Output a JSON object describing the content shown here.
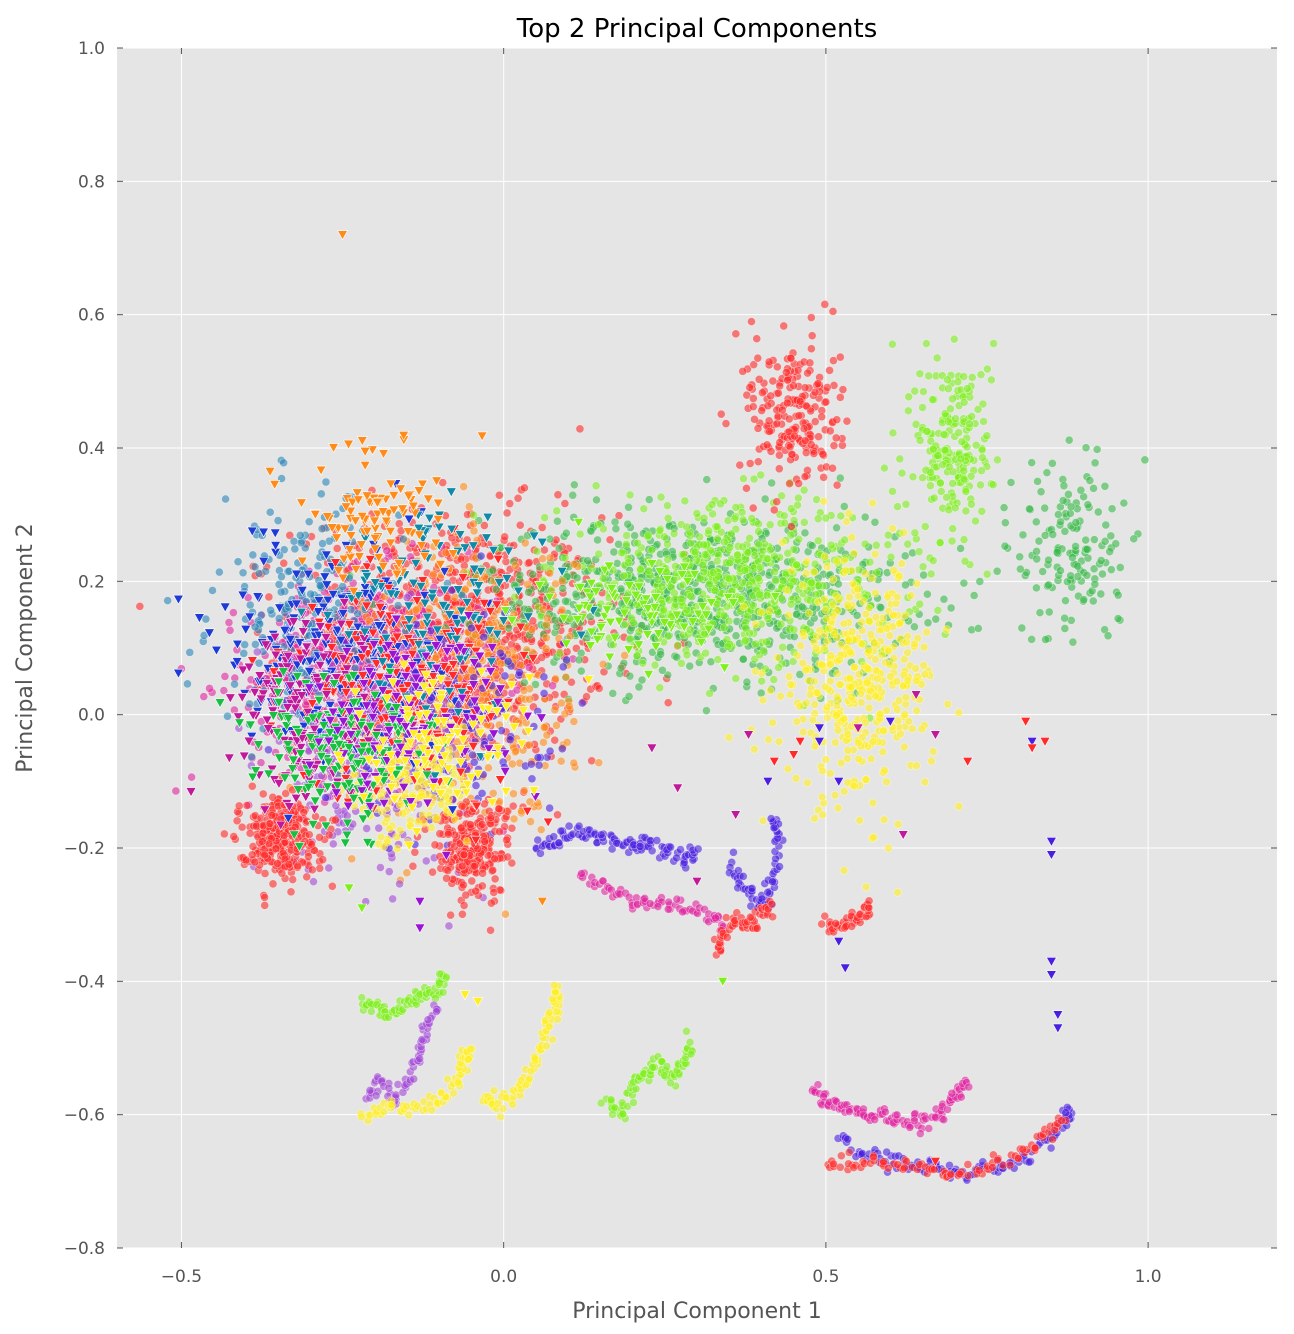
{
  "chart_data": {
    "type": "scatter",
    "title": "Top 2 Principal Components",
    "xlabel": "Principal Component 1",
    "ylabel": "Principal Component 2",
    "xlim": [
      -0.6,
      1.2
    ],
    "ylim": [
      -0.8,
      1.0
    ],
    "x_ticks": [
      -0.5,
      0.0,
      0.5,
      1.0
    ],
    "x_tick_labels": [
      "−0.5",
      "0.0",
      "0.5",
      "1.0"
    ],
    "y_ticks": [
      -0.8,
      -0.6,
      -0.4,
      -0.2,
      0.0,
      0.2,
      0.4,
      0.6,
      0.8,
      1.0
    ],
    "y_tick_labels": [
      "−0.8",
      "−0.6",
      "−0.4",
      "−0.2",
      "0.0",
      "0.2",
      "0.4",
      "0.6",
      "0.8",
      "1.0"
    ],
    "grid": true,
    "background": "#e5e5e5",
    "marker_alpha": 0.6,
    "clusters": [
      {
        "color": "#ff2a2a",
        "marker": "circle",
        "n": 900,
        "cx": -0.08,
        "cy": 0.12,
        "sx": 0.2,
        "sy": 0.15
      },
      {
        "color": "#e0259e",
        "marker": "circle",
        "n": 700,
        "cx": -0.2,
        "cy": 0.05,
        "sx": 0.16,
        "sy": 0.13
      },
      {
        "color": "#38b94a",
        "marker": "circle",
        "n": 800,
        "cx": 0.3,
        "cy": 0.18,
        "sx": 0.28,
        "sy": 0.1
      },
      {
        "color": "#7fef1e",
        "marker": "circle",
        "n": 550,
        "cx": 0.35,
        "cy": 0.2,
        "sx": 0.22,
        "sy": 0.1
      },
      {
        "color": "#ffee22",
        "marker": "circle",
        "n": 420,
        "cx": 0.55,
        "cy": 0.05,
        "sx": 0.1,
        "sy": 0.15
      },
      {
        "color": "#ff8c1a",
        "marker": "circle",
        "n": 420,
        "cx": -0.05,
        "cy": 0.05,
        "sx": 0.13,
        "sy": 0.18
      },
      {
        "color": "#2a86b8",
        "marker": "circle",
        "n": 260,
        "cx": -0.3,
        "cy": 0.15,
        "sx": 0.12,
        "sy": 0.14
      },
      {
        "color": "#a24ad6",
        "marker": "circle",
        "n": 300,
        "cx": -0.2,
        "cy": -0.05,
        "sx": 0.12,
        "sy": 0.15
      },
      {
        "color": "#4a1fe0",
        "marker": "circle",
        "n": 250,
        "cx": -0.1,
        "cy": 0.0,
        "sx": 0.15,
        "sy": 0.12
      },
      {
        "color": "#ff2a2a",
        "marker": "circle",
        "n": 220,
        "cx": 0.45,
        "cy": 0.45,
        "sx": 0.06,
        "sy": 0.1
      },
      {
        "color": "#7fef1e",
        "marker": "circle",
        "n": 200,
        "cx": 0.7,
        "cy": 0.4,
        "sx": 0.05,
        "sy": 0.12
      },
      {
        "color": "#38b94a",
        "marker": "circle",
        "n": 150,
        "cx": 0.88,
        "cy": 0.25,
        "sx": 0.07,
        "sy": 0.12
      },
      {
        "color": "#ff2a2a",
        "marker": "circle",
        "n": 300,
        "cx": -0.35,
        "cy": -0.18,
        "sx": 0.05,
        "sy": 0.05
      },
      {
        "color": "#ff2a2a",
        "marker": "circle",
        "n": 250,
        "cx": -0.05,
        "cy": -0.2,
        "sx": 0.05,
        "sy": 0.06
      },
      {
        "color": "#ffee22",
        "marker": "circle",
        "n": 200,
        "cx": -0.15,
        "cy": -0.1,
        "sx": 0.08,
        "sy": 0.08
      },
      {
        "color": "#1f3bd6",
        "marker": "triangle",
        "n": 220,
        "cx": -0.25,
        "cy": 0.1,
        "sx": 0.15,
        "sy": 0.13
      },
      {
        "color": "#ff2a2a",
        "marker": "triangle",
        "n": 220,
        "cx": -0.15,
        "cy": 0.05,
        "sx": 0.15,
        "sy": 0.14
      },
      {
        "color": "#c0199a",
        "marker": "triangle",
        "n": 160,
        "cx": -0.3,
        "cy": 0.0,
        "sx": 0.1,
        "sy": 0.12
      },
      {
        "color": "#118aa8",
        "marker": "triangle",
        "n": 120,
        "cx": -0.1,
        "cy": 0.15,
        "sx": 0.13,
        "sy": 0.14
      },
      {
        "color": "#18c040",
        "marker": "triangle",
        "n": 160,
        "cx": -0.25,
        "cy": -0.05,
        "sx": 0.12,
        "sy": 0.1
      },
      {
        "color": "#9a14d4",
        "marker": "triangle",
        "n": 120,
        "cx": -0.15,
        "cy": 0.0,
        "sx": 0.13,
        "sy": 0.12
      },
      {
        "color": "#ff8c1a",
        "marker": "triangle",
        "n": 100,
        "cx": -0.2,
        "cy": 0.3,
        "sx": 0.1,
        "sy": 0.08
      },
      {
        "color": "#ffee22",
        "marker": "triangle",
        "n": 100,
        "cx": -0.1,
        "cy": -0.05,
        "sx": 0.12,
        "sy": 0.1
      },
      {
        "color": "#7fef1e",
        "marker": "triangle",
        "n": 80,
        "cx": 0.2,
        "cy": 0.15,
        "sx": 0.12,
        "sy": 0.06
      }
    ],
    "sparse_points": [
      {
        "color": "#c0199a",
        "marker": "triangle",
        "points": [
          [
            0.62,
            -0.18
          ],
          [
            0.64,
            0.03
          ],
          [
            0.67,
            -0.03
          ],
          [
            0.6,
            -0.01
          ],
          [
            0.55,
            -0.02
          ],
          [
            0.38,
            -0.03
          ],
          [
            0.36,
            -0.15
          ],
          [
            0.27,
            -0.11
          ],
          [
            0.23,
            -0.05
          ],
          [
            0.3,
            -0.25
          ]
        ]
      },
      {
        "color": "#4a1fe0",
        "marker": "triangle",
        "points": [
          [
            0.49,
            -0.02
          ],
          [
            0.49,
            -0.04
          ],
          [
            0.52,
            -0.1
          ],
          [
            0.53,
            -0.38
          ],
          [
            0.52,
            -0.34
          ],
          [
            0.85,
            -0.19
          ],
          [
            0.85,
            -0.21
          ],
          [
            0.85,
            -0.37
          ],
          [
            0.85,
            -0.39
          ],
          [
            0.86,
            -0.45
          ],
          [
            0.86,
            -0.47
          ],
          [
            0.82,
            -0.04
          ],
          [
            0.6,
            -0.01
          ],
          [
            0.41,
            -0.1
          ]
        ]
      },
      {
        "color": "#ff2a2a",
        "marker": "triangle",
        "points": [
          [
            0.46,
            -0.04
          ],
          [
            0.42,
            -0.07
          ],
          [
            0.45,
            -0.06
          ],
          [
            0.81,
            -0.01
          ],
          [
            0.84,
            -0.04
          ],
          [
            0.82,
            -0.05
          ],
          [
            0.72,
            -0.07
          ],
          [
            0.67,
            -0.67
          ]
        ]
      },
      {
        "color": "#ff8c1a",
        "marker": "triangle",
        "points": [
          [
            -0.25,
            0.72
          ],
          [
            0.06,
            -0.28
          ]
        ]
      },
      {
        "color": "#7fef1e",
        "marker": "triangle",
        "points": [
          [
            -0.22,
            -0.29
          ],
          [
            -0.24,
            -0.26
          ],
          [
            0.34,
            -0.4
          ]
        ]
      },
      {
        "color": "#9a14d4",
        "marker": "triangle",
        "points": [
          [
            -0.13,
            -0.32
          ],
          [
            -0.13,
            -0.28
          ]
        ]
      },
      {
        "color": "#ffee22",
        "marker": "triangle",
        "points": [
          [
            -0.06,
            -0.42
          ],
          [
            -0.04,
            -0.43
          ]
        ]
      }
    ],
    "curves": [
      {
        "color": "#7fef1e",
        "points": [
          [
            -0.22,
            -0.43
          ],
          [
            -0.2,
            -0.44
          ],
          [
            -0.18,
            -0.45
          ],
          [
            -0.16,
            -0.44
          ],
          [
            -0.14,
            -0.43
          ],
          [
            -0.12,
            -0.42
          ],
          [
            -0.1,
            -0.41
          ],
          [
            -0.09,
            -0.39
          ]
        ]
      },
      {
        "color": "#a24ad6",
        "points": [
          [
            -0.21,
            -0.57
          ],
          [
            -0.19,
            -0.55
          ],
          [
            -0.17,
            -0.58
          ],
          [
            -0.15,
            -0.55
          ],
          [
            -0.13,
            -0.51
          ],
          [
            -0.12,
            -0.47
          ],
          [
            -0.1,
            -0.44
          ]
        ]
      },
      {
        "color": "#ffee22",
        "points": [
          [
            -0.22,
            -0.6
          ],
          [
            -0.18,
            -0.59
          ],
          [
            -0.14,
            -0.59
          ],
          [
            -0.1,
            -0.58
          ],
          [
            -0.07,
            -0.55
          ],
          [
            -0.06,
            -0.52
          ],
          [
            -0.05,
            -0.5
          ]
        ]
      },
      {
        "color": "#ffee22",
        "points": [
          [
            -0.03,
            -0.57
          ],
          [
            -0.01,
            -0.59
          ],
          [
            0.02,
            -0.57
          ],
          [
            0.04,
            -0.54
          ],
          [
            0.06,
            -0.5
          ],
          [
            0.07,
            -0.46
          ],
          [
            0.08,
            -0.43
          ],
          [
            0.085,
            -0.41
          ]
        ]
      },
      {
        "color": "#7fef1e",
        "points": [
          [
            0.16,
            -0.58
          ],
          [
            0.18,
            -0.6
          ],
          [
            0.2,
            -0.56
          ],
          [
            0.22,
            -0.54
          ],
          [
            0.24,
            -0.52
          ],
          [
            0.26,
            -0.55
          ],
          [
            0.28,
            -0.52
          ],
          [
            0.29,
            -0.49
          ]
        ]
      },
      {
        "color": "#4a1fe0",
        "points": [
          [
            0.05,
            -0.2
          ],
          [
            0.08,
            -0.19
          ],
          [
            0.11,
            -0.17
          ],
          [
            0.14,
            -0.18
          ],
          [
            0.17,
            -0.19
          ],
          [
            0.2,
            -0.2
          ],
          [
            0.22,
            -0.19
          ],
          [
            0.25,
            -0.2
          ],
          [
            0.28,
            -0.22
          ],
          [
            0.3,
            -0.2
          ]
        ]
      },
      {
        "color": "#e0259e",
        "points": [
          [
            0.12,
            -0.24
          ],
          [
            0.16,
            -0.26
          ],
          [
            0.2,
            -0.28
          ],
          [
            0.24,
            -0.28
          ],
          [
            0.28,
            -0.29
          ],
          [
            0.32,
            -0.3
          ],
          [
            0.34,
            -0.31
          ]
        ]
      },
      {
        "color": "#4a1fe0",
        "points": [
          [
            0.35,
            -0.22
          ],
          [
            0.37,
            -0.26
          ],
          [
            0.39,
            -0.28
          ],
          [
            0.41,
            -0.28
          ],
          [
            0.42,
            -0.24
          ],
          [
            0.43,
            -0.18
          ],
          [
            0.42,
            -0.16
          ]
        ]
      },
      {
        "color": "#ff2a2a",
        "points": [
          [
            0.33,
            -0.36
          ],
          [
            0.34,
            -0.33
          ],
          [
            0.36,
            -0.31
          ],
          [
            0.38,
            -0.32
          ],
          [
            0.4,
            -0.3
          ],
          [
            0.42,
            -0.29
          ]
        ]
      },
      {
        "color": "#ff2a2a",
        "points": [
          [
            0.5,
            -0.32
          ],
          [
            0.52,
            -0.32
          ],
          [
            0.54,
            -0.31
          ],
          [
            0.56,
            -0.3
          ],
          [
            0.57,
            -0.28
          ]
        ]
      },
      {
        "color": "#e0259e",
        "points": [
          [
            0.48,
            -0.56
          ],
          [
            0.5,
            -0.58
          ],
          [
            0.53,
            -0.59
          ],
          [
            0.56,
            -0.6
          ],
          [
            0.59,
            -0.6
          ],
          [
            0.62,
            -0.61
          ],
          [
            0.65,
            -0.61
          ],
          [
            0.68,
            -0.6
          ],
          [
            0.7,
            -0.57
          ],
          [
            0.72,
            -0.55
          ]
        ]
      },
      {
        "color": "#4a1fe0",
        "points": [
          [
            0.52,
            -0.63
          ],
          [
            0.56,
            -0.66
          ],
          [
            0.6,
            -0.67
          ],
          [
            0.64,
            -0.68
          ],
          [
            0.68,
            -0.68
          ],
          [
            0.72,
            -0.69
          ],
          [
            0.76,
            -0.68
          ],
          [
            0.8,
            -0.67
          ],
          [
            0.84,
            -0.64
          ],
          [
            0.87,
            -0.61
          ],
          [
            0.88,
            -0.59
          ]
        ]
      },
      {
        "color": "#ff2a2a",
        "points": [
          [
            0.5,
            -0.67
          ],
          [
            0.55,
            -0.67
          ],
          [
            0.6,
            -0.67
          ],
          [
            0.65,
            -0.68
          ],
          [
            0.7,
            -0.69
          ],
          [
            0.75,
            -0.68
          ],
          [
            0.8,
            -0.66
          ],
          [
            0.84,
            -0.63
          ],
          [
            0.87,
            -0.61
          ]
        ]
      }
    ]
  }
}
